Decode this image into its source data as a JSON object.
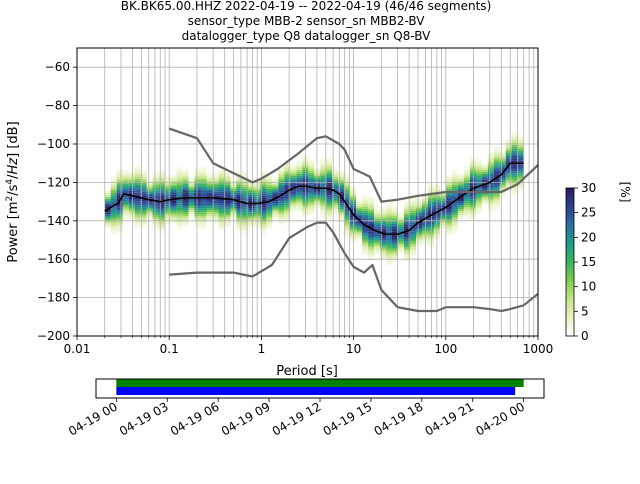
{
  "figure": {
    "title_lines": [
      "BK.BK65.00.HHZ   2022-04-19 -- 2022-04-19  (46/46 segments)",
      "sensor_type MBB-2 sensor_sn MBB2-BV",
      "datalogger_type Q8 datalogger_sn Q8-BV"
    ]
  },
  "chart_data": [
    {
      "type": "heatmap",
      "title": "BK.BK65.00.HHZ   2022-04-19 -- 2022-04-19  (46/46 segments)",
      "xlabel": "Period [s]",
      "ylabel": "Power [m²/s⁴/Hz] [dB]",
      "x_scale": "log",
      "xlim": [
        0.01,
        1000
      ],
      "ylim": [
        -200,
        -50
      ],
      "x_ticks": [
        0.01,
        0.1,
        1,
        10,
        100,
        1000
      ],
      "x_tick_labels": [
        "0.01",
        "0.1",
        "1",
        "10",
        "100",
        "1000"
      ],
      "y_ticks": [
        -200,
        -180,
        -160,
        -140,
        -120,
        -100,
        -80,
        -60
      ],
      "y_tick_labels": [
        "−200",
        "−180",
        "−160",
        "−140",
        "−120",
        "−100",
        "−80",
        "−60"
      ],
      "grid": true,
      "colorbar": {
        "label": "[%]",
        "range": [
          0,
          30
        ],
        "ticks": [
          0,
          5,
          10,
          15,
          20,
          25,
          30
        ],
        "colors": [
          "#ffffff",
          "#e8f3c4",
          "#c6e48b",
          "#7fcc4f",
          "#3bb35f",
          "#1f9b86",
          "#2a6fa0",
          "#2d3f8f",
          "#2b1a5e"
        ]
      },
      "series": [
        {
          "name": "mode",
          "color": "#000000",
          "x": [
            0.02,
            0.025,
            0.028,
            0.032,
            0.04,
            0.06,
            0.08,
            0.1,
            0.15,
            0.2,
            0.3,
            0.5,
            0.7,
            0.9,
            1.2,
            1.6,
            2,
            2.5,
            3,
            4,
            5,
            6,
            7,
            8,
            10,
            13,
            17,
            22,
            30,
            40,
            50,
            70,
            100,
            150,
            200,
            300,
            400,
            500,
            700
          ],
          "y": [
            -135,
            -132,
            -131,
            -126,
            -127,
            -129,
            -130,
            -129,
            -128,
            -128,
            -128,
            -129,
            -131,
            -131,
            -130,
            -127,
            -124,
            -122,
            -122,
            -123,
            -123,
            -124,
            -126,
            -130,
            -137,
            -142,
            -145,
            -147,
            -147,
            -145,
            -141,
            -137,
            -133,
            -127,
            -123,
            -120,
            -116,
            -110,
            -110
          ]
        },
        {
          "name": "min",
          "color": "#666666",
          "x": [
            0.1,
            0.2,
            0.3,
            0.5,
            0.8,
            1.3,
            2,
            3.2,
            4,
            5,
            6,
            8,
            10,
            13,
            16,
            20,
            30,
            50,
            80,
            100,
            150,
            200,
            300,
            400,
            500,
            700,
            1000
          ],
          "y": [
            -168,
            -167,
            -167,
            -167,
            -169,
            -163,
            -149,
            -143,
            -141,
            -141,
            -146,
            -157,
            -164,
            -167,
            -163,
            -176,
            -185,
            -187,
            -187,
            -185,
            -185,
            -185,
            -186,
            -187,
            -186,
            -184,
            -178
          ]
        },
        {
          "name": "max",
          "color": "#666666",
          "x": [
            0.1,
            0.2,
            0.3,
            0.8,
            1,
            1.5,
            2.5,
            4,
            5,
            7,
            8,
            10,
            15,
            20,
            30,
            50,
            100,
            200,
            400,
            600,
            1000
          ],
          "y": [
            -92,
            -97,
            -110,
            -120,
            -118,
            -113,
            -105,
            -97,
            -96,
            -100,
            -103,
            -113,
            -117,
            -130,
            -129,
            -127,
            -125,
            -125,
            -125,
            -121,
            -111
          ]
        }
      ]
    },
    {
      "type": "timeline",
      "x_tick_labels": [
        "04-19 00",
        "04-19 03",
        "04-19 06",
        "04-19 09",
        "04-19 12",
        "04-19 15",
        "04-19 18",
        "04-19 21",
        "04-20 00"
      ],
      "xlim_hours": [
        -1.2,
        25.2
      ],
      "bars": [
        {
          "color": "#008000",
          "start_hour": 0,
          "end_hour": 24
        },
        {
          "color": "#0000ff",
          "start_hour": 0,
          "end_hour": 23.5
        }
      ]
    }
  ]
}
